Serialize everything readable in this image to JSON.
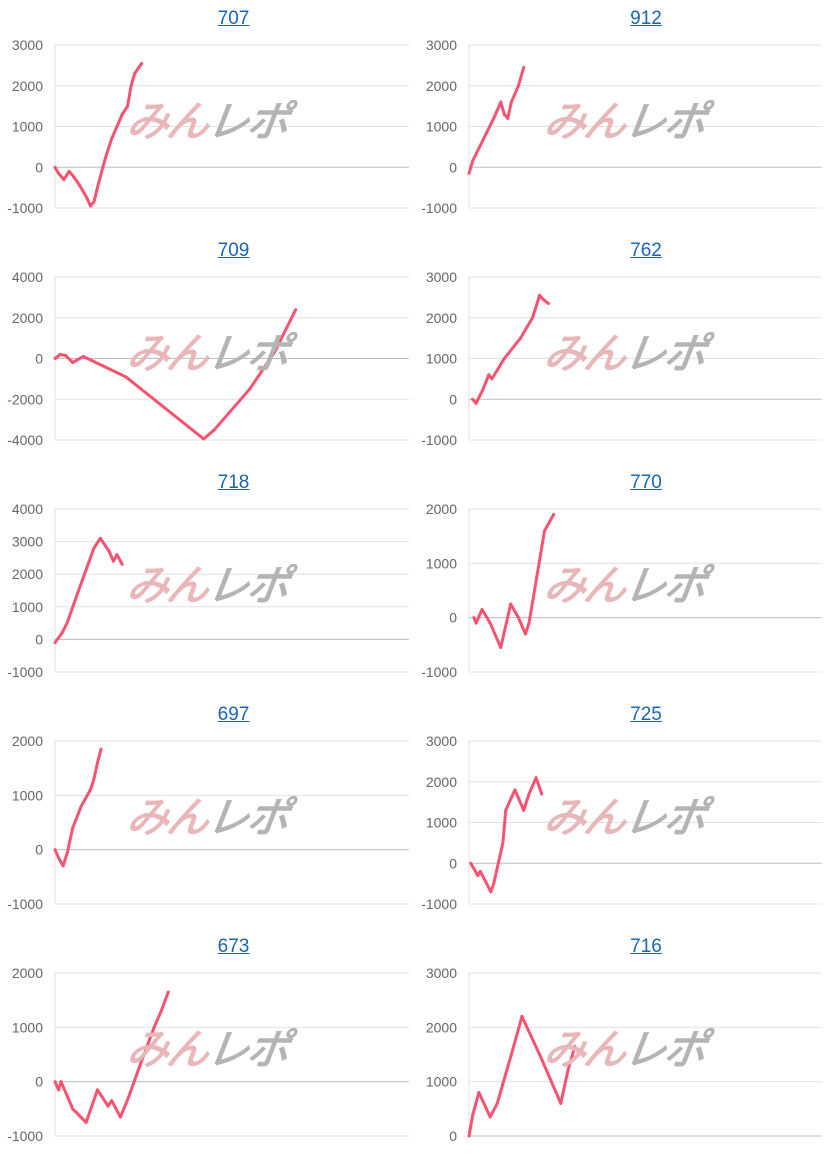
{
  "watermark": {
    "part1": "みん",
    "part2": "レポ"
  },
  "colors": {
    "line": "#f5536f",
    "title": "#1a64b8",
    "grid": "#e2e2e2",
    "zero": "#bdbdbd",
    "tick": "#666666"
  },
  "chart_data": [
    {
      "type": "line",
      "title": "707",
      "xlim": [
        0,
        100
      ],
      "ylim": [
        -1000,
        3000
      ],
      "yticks": [
        3000,
        2000,
        1000,
        0,
        -1000
      ],
      "grid": true,
      "x": [
        0,
        1,
        2.5,
        4,
        5,
        7,
        9,
        10,
        11,
        12,
        13.5,
        14.5,
        16,
        17.5,
        19,
        20.5,
        21.5,
        22.5,
        24.5
      ],
      "y": [
        0,
        -150,
        -300,
        -100,
        -200,
        -450,
        -750,
        -950,
        -850,
        -500,
        0,
        300,
        700,
        1000,
        1300,
        1500,
        2000,
        2300,
        2550
      ]
    },
    {
      "type": "line",
      "title": "912",
      "xlim": [
        0,
        100
      ],
      "ylim": [
        -1000,
        3000
      ],
      "yticks": [
        3000,
        2000,
        1000,
        0,
        -1000
      ],
      "grid": true,
      "x": [
        0,
        1,
        3,
        5,
        7,
        9,
        10,
        11,
        12,
        14,
        15.5
      ],
      "y": [
        -150,
        150,
        500,
        850,
        1200,
        1600,
        1300,
        1200,
        1600,
        2000,
        2450
      ]
    },
    {
      "type": "line",
      "title": "709",
      "xlim": [
        0,
        100
      ],
      "ylim": [
        -4000,
        4000
      ],
      "yticks": [
        4000,
        2000,
        0,
        -2000,
        -4000
      ],
      "grid": true,
      "x": [
        0,
        1.5,
        3,
        5,
        8,
        20,
        42,
        45,
        55,
        62,
        68
      ],
      "y": [
        0,
        200,
        150,
        -200,
        100,
        -900,
        -3950,
        -3500,
        -1500,
        300,
        2400
      ]
    },
    {
      "type": "line",
      "title": "762",
      "xlim": [
        0,
        100
      ],
      "ylim": [
        -1000,
        3000
      ],
      "yticks": [
        3000,
        2000,
        1000,
        0,
        -1000
      ],
      "grid": true,
      "x": [
        1,
        2,
        4,
        5.6,
        6.5,
        10,
        14.6,
        18,
        20,
        21,
        22.5
      ],
      "y": [
        0,
        -100,
        250,
        600,
        500,
        1000,
        1500,
        2000,
        2550,
        2450,
        2350
      ]
    },
    {
      "type": "line",
      "title": "718",
      "xlim": [
        0,
        100
      ],
      "ylim": [
        -1000,
        4000
      ],
      "yticks": [
        4000,
        3000,
        2000,
        1000,
        0,
        -1000
      ],
      "grid": true,
      "x": [
        0,
        2,
        3.4,
        6,
        9,
        11,
        12.8,
        15.3,
        16.5,
        17.5,
        19
      ],
      "y": [
        -100,
        200,
        500,
        1300,
        2200,
        2800,
        3100,
        2700,
        2400,
        2600,
        2300
      ]
    },
    {
      "type": "line",
      "title": "770",
      "xlim": [
        0,
        100
      ],
      "ylim": [
        -1000,
        2000
      ],
      "yticks": [
        2000,
        1000,
        0,
        -1000
      ],
      "grid": true,
      "x": [
        1.4,
        2,
        3.7,
        6,
        9,
        11.8,
        14,
        16,
        17,
        21.4,
        24
      ],
      "y": [
        0,
        -100,
        150,
        -100,
        -550,
        250,
        0,
        -300,
        -100,
        1600,
        1900
      ]
    },
    {
      "type": "line",
      "title": "697",
      "xlim": [
        0,
        100
      ],
      "ylim": [
        -1000,
        2000
      ],
      "yticks": [
        2000,
        1000,
        0,
        -1000
      ],
      "grid": true,
      "x": [
        0,
        1,
        2.3,
        3.5,
        5,
        7.4,
        10,
        11,
        12,
        13
      ],
      "y": [
        0,
        -150,
        -300,
        -50,
        400,
        800,
        1100,
        1300,
        1600,
        1850
      ]
    },
    {
      "type": "line",
      "title": "725",
      "xlim": [
        0,
        100
      ],
      "ylim": [
        -1000,
        3000
      ],
      "yticks": [
        3000,
        2000,
        1000,
        0,
        -1000
      ],
      "grid": true,
      "x": [
        0.5,
        2.5,
        3.2,
        6.2,
        7,
        9.6,
        10.4,
        13,
        15.5,
        17,
        19,
        20.6
      ],
      "y": [
        0,
        -300,
        -200,
        -700,
        -500,
        500,
        1300,
        1800,
        1300,
        1700,
        2100,
        1700
      ]
    },
    {
      "type": "line",
      "title": "673",
      "xlim": [
        0,
        100
      ],
      "ylim": [
        -1000,
        2000
      ],
      "yticks": [
        2000,
        1000,
        0,
        -1000
      ],
      "grid": true,
      "x": [
        0,
        1,
        1.7,
        5,
        8.8,
        12,
        15,
        16,
        18.5,
        20.7,
        24,
        28,
        30,
        32
      ],
      "y": [
        0,
        -150,
        0,
        -500,
        -750,
        -150,
        -450,
        -350,
        -650,
        -300,
        300,
        1000,
        1300,
        1650
      ]
    },
    {
      "type": "line",
      "title": "716",
      "xlim": [
        0,
        100
      ],
      "ylim": [
        0,
        3000
      ],
      "yticks": [
        3000,
        2000,
        1000,
        0
      ],
      "grid": true,
      "x": [
        0,
        1.1,
        2.8,
        6,
        8,
        12,
        15,
        20,
        26,
        28,
        30
      ],
      "y": [
        0,
        400,
        800,
        350,
        600,
        1500,
        2200,
        1500,
        600,
        1200,
        1650
      ]
    }
  ]
}
